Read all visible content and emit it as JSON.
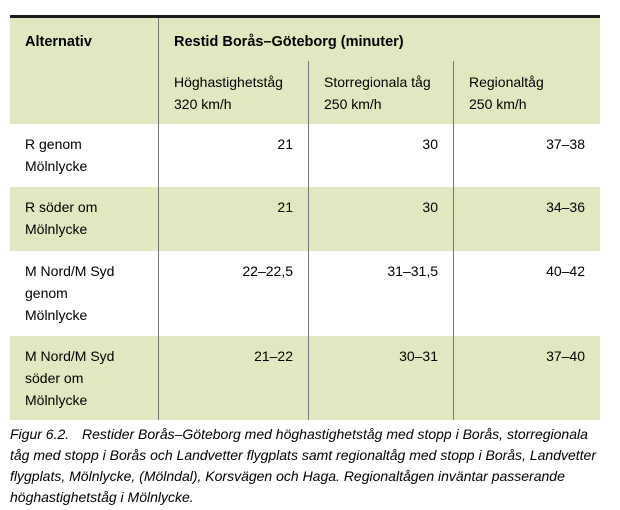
{
  "colors": {
    "band_green": "#e3e7c0",
    "divider_gray": "#757575",
    "top_rule_black": "#1b1b1b",
    "text_black": "#000000",
    "page_white": "#ffffff"
  },
  "table": {
    "corner_header": "Alternativ",
    "group_header": "Restid Borås–Göteborg (minuter)",
    "column_headers": [
      "Höghastighetståg\n320 km/h",
      "Storregionala tåg\n250 km/h",
      "Regionaltåg\n250 km/h"
    ],
    "rows": [
      {
        "label": "R genom\nMölnlycke",
        "values": [
          "21",
          "30",
          "37–38"
        ]
      },
      {
        "label": "R söder om\nMölnlycke",
        "values": [
          "21",
          "30",
          "34–36"
        ]
      },
      {
        "label": "M Nord/M Syd\ngenom\nMölnlycke",
        "values": [
          "22–22,5",
          "31–31,5",
          "40–42"
        ]
      },
      {
        "label": "M Nord/M Syd\nsöder om\nMölnlycke",
        "values": [
          "21–22",
          "30–31",
          "37–40"
        ]
      }
    ]
  },
  "caption": {
    "label": "Figur 6.2.",
    "text": "Restider Borås–Göteborg med höghastighetståg med stopp i Borås, storregionala tåg med stopp i Borås och Landvetter flygplats samt regionaltåg med stopp i Borås, Landvetter flygplats, Mölnlycke, (Mölndal), Korsvägen och Haga. Regionaltågen inväntar passerande höghastighetståg i Mölnlycke."
  }
}
